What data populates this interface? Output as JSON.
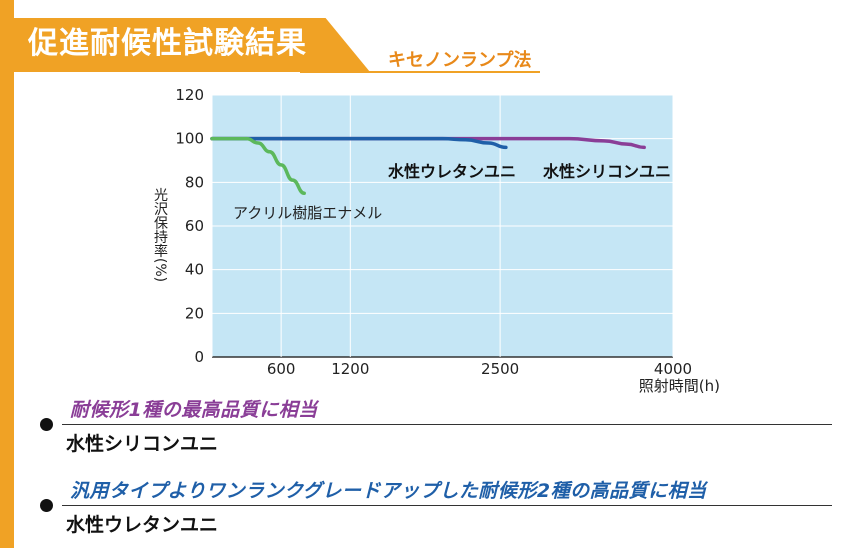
{
  "header": {
    "title": "促進耐候性試験結果",
    "subtitle": "キセノンランプ法",
    "accent_color": "#f0a225",
    "subtitle_color": "#e8891a"
  },
  "chart_data": {
    "type": "line",
    "ylabel": "光沢保持率(%)",
    "xlabel": "照射時間(h)",
    "y_ticks": [
      0,
      20,
      40,
      60,
      80,
      100,
      120
    ],
    "x_ticks": [
      600,
      1200,
      2500,
      4000
    ],
    "x_tick_labels": [
      "600",
      "1200",
      "2500",
      "4000"
    ],
    "ylim": [
      0,
      120
    ],
    "xlim": [
      0,
      4000
    ],
    "plot_background": "#c5e6f5",
    "series": [
      {
        "name": "アクリル樹脂エナメル",
        "color": "#5cb85c",
        "x": [
          0,
          300,
          400,
          500,
          600,
          700,
          800
        ],
        "y": [
          100,
          100,
          98,
          94,
          88,
          81,
          75
        ]
      },
      {
        "name": "水性ウレタンユニ",
        "color": "#1f5fa8",
        "x": [
          0,
          1000,
          1500,
          2000,
          2200,
          2400,
          2550
        ],
        "y": [
          100,
          100,
          100,
          100,
          99.5,
          98,
          96
        ]
      },
      {
        "name": "水性シリコンユニ",
        "color": "#8a3e97",
        "x": [
          0,
          2000,
          2500,
          3100,
          3400,
          3600,
          3750
        ],
        "y": [
          100,
          100,
          100,
          100,
          99,
          97.5,
          96
        ]
      }
    ]
  },
  "sections": [
    {
      "feature": "耐候形1種の最高品質に相当",
      "feature_color": "#8a3e97",
      "product": "水性シリコンユニ"
    },
    {
      "feature": "汎用タイプよりワンランクグレードアップした耐候形2種の高品質に相当",
      "feature_color": "#1f5fa8",
      "product": "水性ウレタンユニ"
    }
  ]
}
